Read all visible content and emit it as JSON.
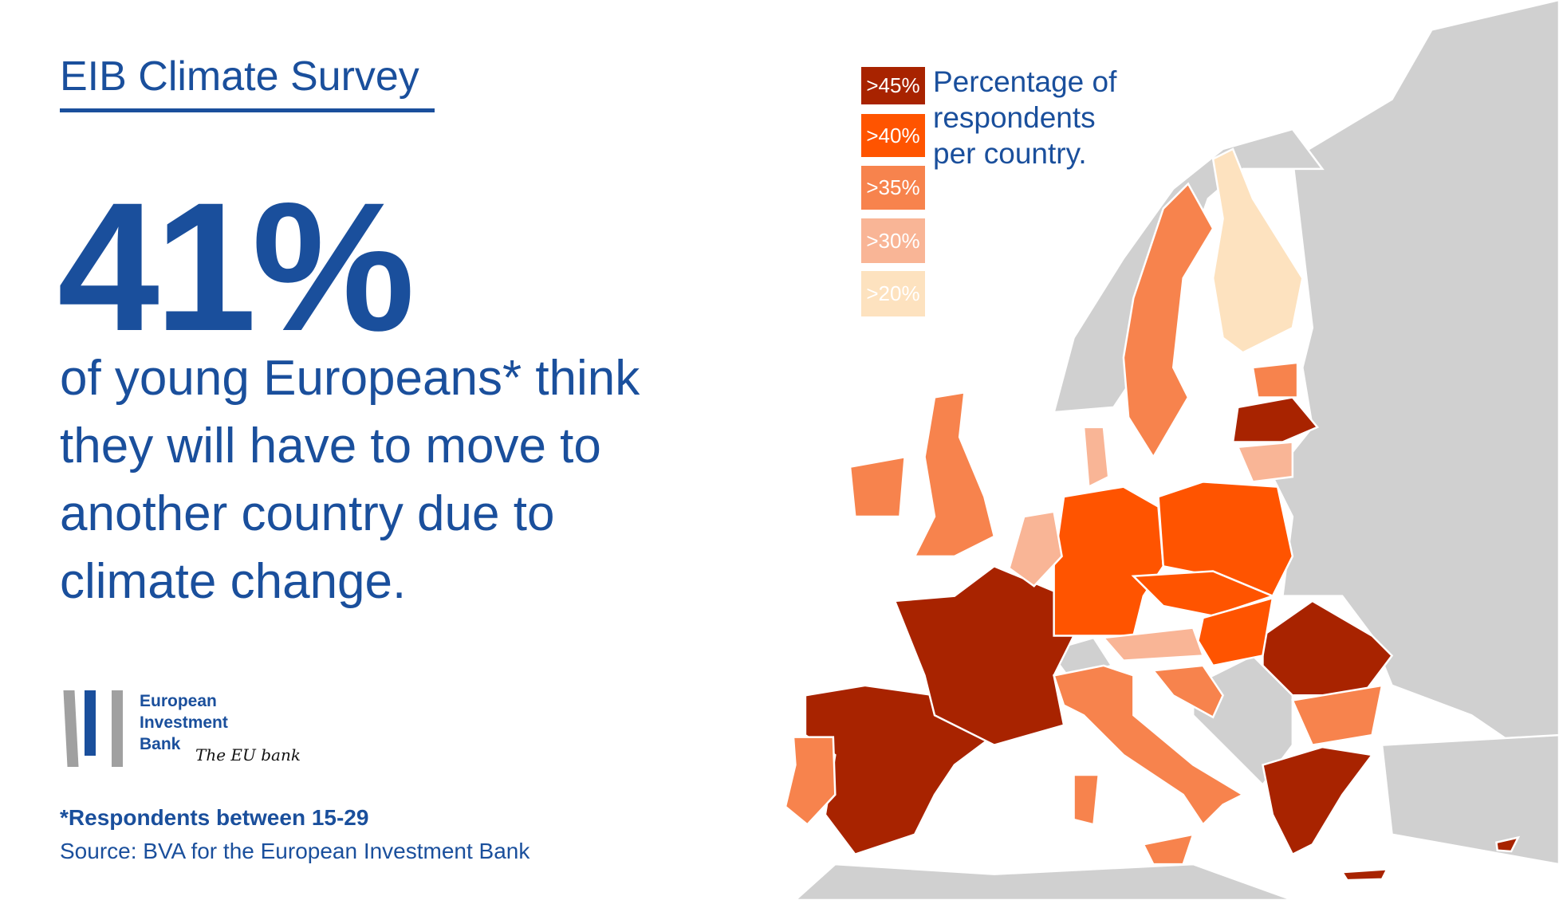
{
  "header": {
    "title": "EIB Climate Survey"
  },
  "headline": {
    "value": "41%",
    "lines": [
      "of young Europeans* think",
      "they will have to move to",
      "another country due to",
      "climate change."
    ]
  },
  "logo": {
    "lines": [
      "European",
      "Investment",
      "Bank"
    ],
    "tagline": "The EU bank"
  },
  "footnote": "*Respondents between 15-29",
  "source": "Source: BVA for the European Investment Bank",
  "legend": {
    "title": [
      "Percentage of",
      "respondents",
      "per country."
    ],
    "bins": [
      {
        "label": ">45%",
        "color": "#a82300"
      },
      {
        "label": ">40%",
        "color": "#ff5400"
      },
      {
        "label": ">35%",
        "color": "#f7834d"
      },
      {
        "label": ">30%",
        "color": "#f9b596"
      },
      {
        "label": ">20%",
        "color": "#fde2bf"
      }
    ]
  },
  "map": {
    "no_data_color": "#d0d0d0",
    "countries": {
      "Spain": ">45%",
      "France": ">45%",
      "Romania": ">45%",
      "Greece": ">45%",
      "Latvia": ">45%",
      "Cyprus": ">45%",
      "Germany": ">40%",
      "Poland": ">40%",
      "Czechia-Slovakia": ">40%",
      "Hungary": ">40%",
      "Portugal": ">35%",
      "UK": ">35%",
      "Ireland": ">35%",
      "Italy": ">35%",
      "Sweden": ">35%",
      "Estonia": ">35%",
      "Bulgaria": ">35%",
      "Croatia-Slovenia": ">35%",
      "Benelux": ">30%",
      "Austria": ">30%",
      "Lithuania": ">30%",
      "Denmark": ">30%",
      "Finland": ">20%"
    }
  }
}
